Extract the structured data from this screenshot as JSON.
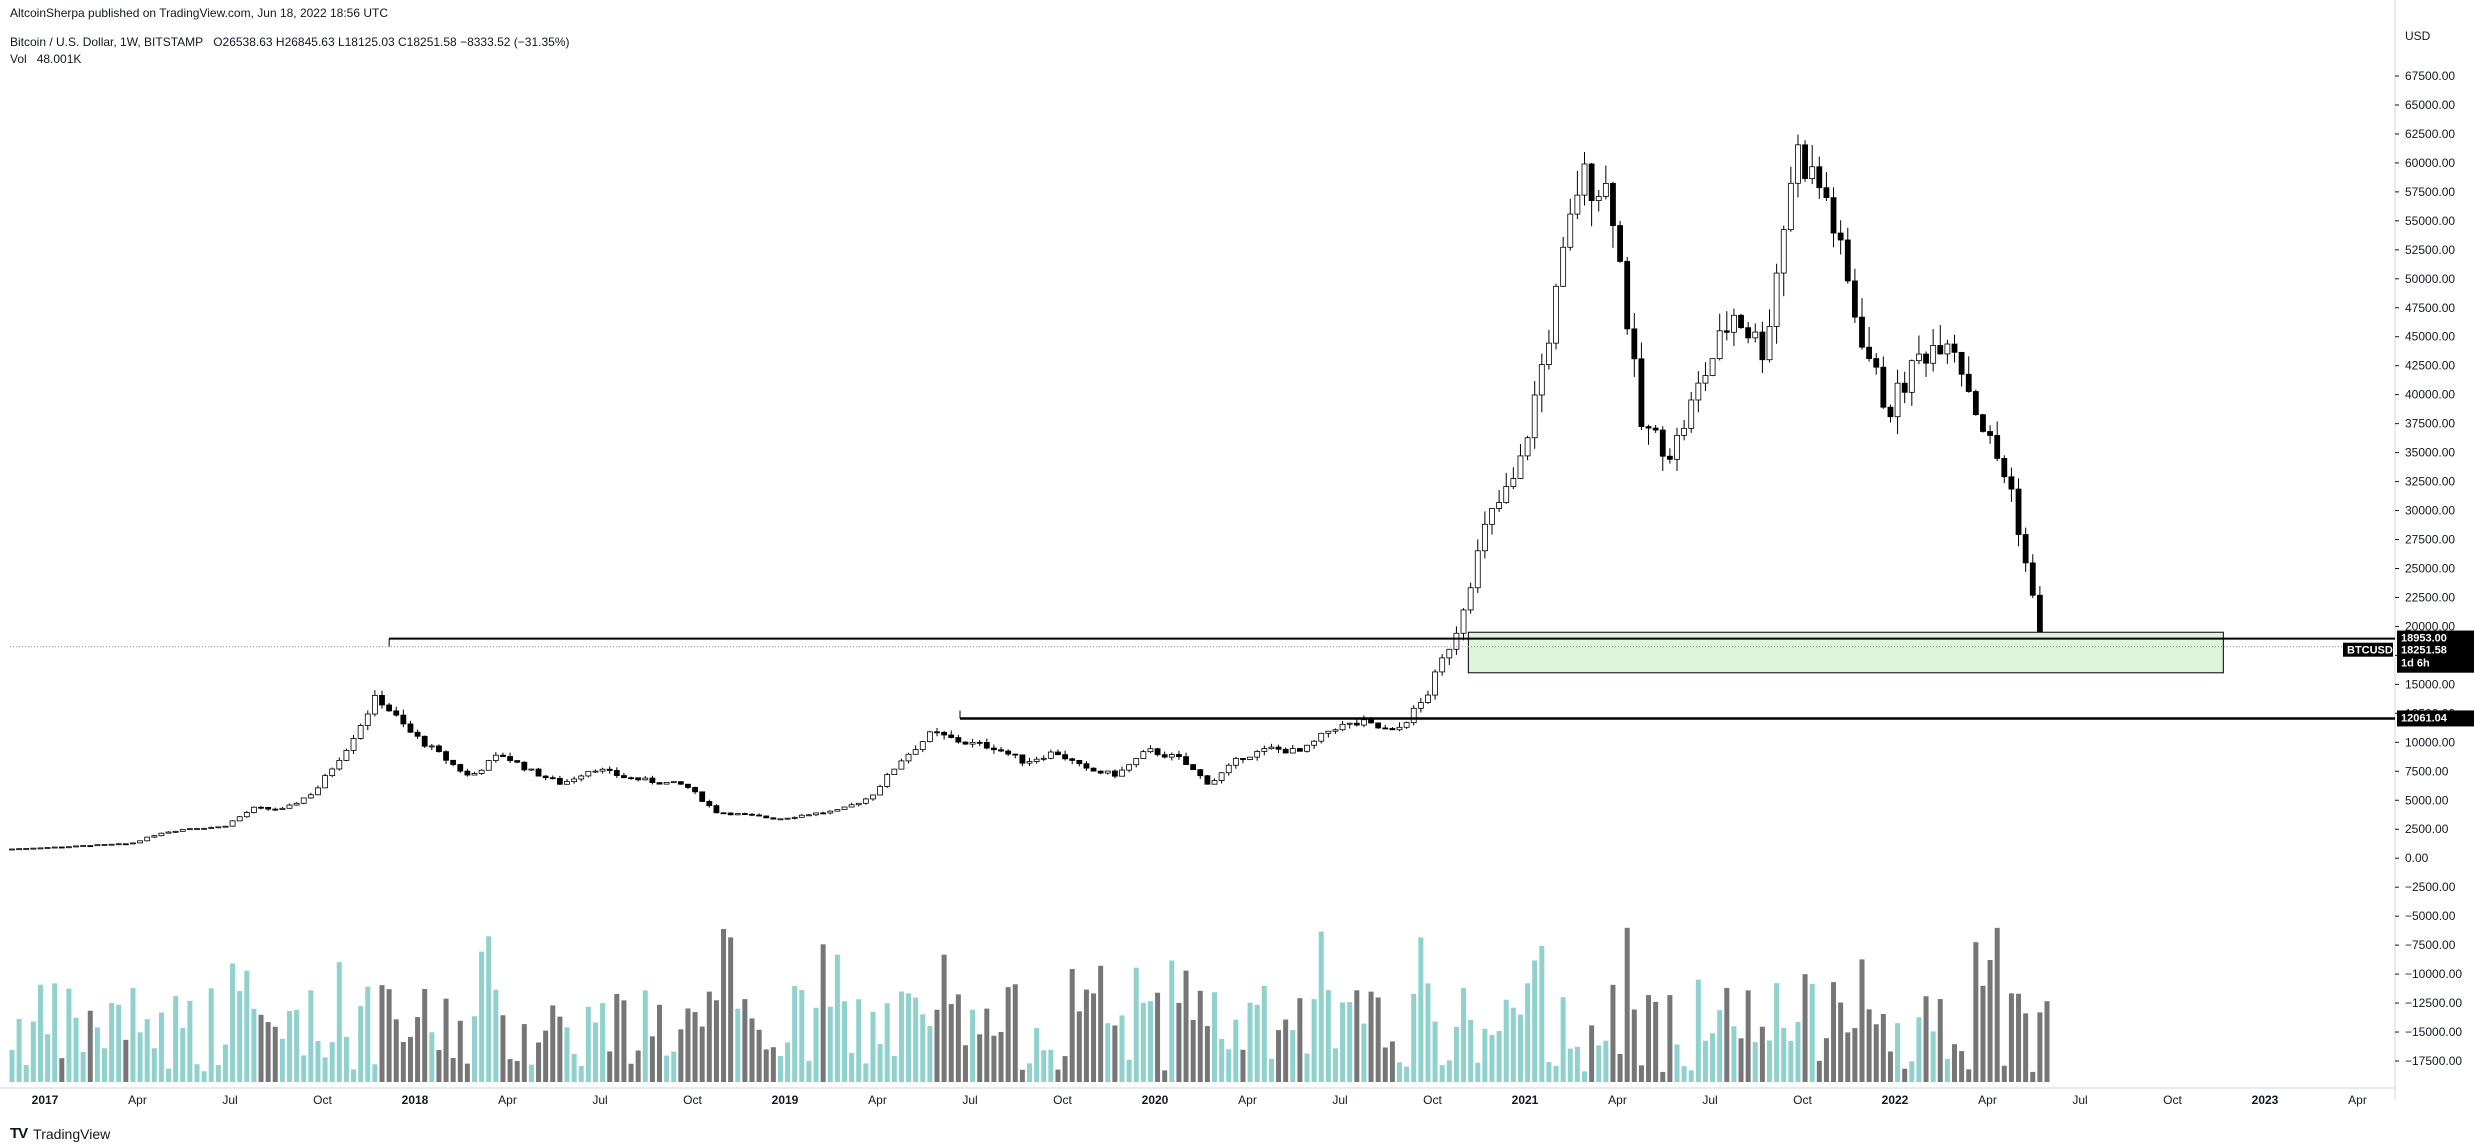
{
  "header": {
    "published": "AltcoinSherpa published on TradingView.com, Jun 18, 2022 18:56 UTC",
    "symbol_line": "Bitcoin / U.S. Dollar, 1W, BITSTAMP",
    "ohlc": "O26538.63  H26845.63  L18125.03  C18251.58  −8333.52 (−31.35%)",
    "vol_label": "Vol",
    "vol_value": "48.001K"
  },
  "footer": {
    "logo_text": "TV",
    "brand": "TradingView"
  },
  "currency_label": "USD",
  "price_tags": [
    {
      "label": "18953.00",
      "value": 18953
    },
    {
      "label": "BTCUSD",
      "value": 18251.58,
      "sub": "18251.58",
      "sub2": "1d 6h"
    },
    {
      "label": "12061.04",
      "value": 12061.04
    }
  ],
  "chart_data": {
    "type": "candlestick",
    "title": "Bitcoin / U.S. Dollar, 1W, BITSTAMP",
    "price_axis": {
      "min": -17500,
      "max": 67500,
      "step": 2500,
      "labels": [
        "67500.00",
        "65000.00",
        "62500.00",
        "60000.00",
        "57500.00",
        "55000.00",
        "52500.00",
        "50000.00",
        "47500.00",
        "45000.00",
        "42500.00",
        "40000.00",
        "37500.00",
        "35000.00",
        "32500.00",
        "30000.00",
        "27500.00",
        "25000.00",
        "22500.00",
        "20000.00",
        "17500.00",
        "15000.00",
        "12500.00",
        "10000.00",
        "7500.00",
        "5000.00",
        "2500.00",
        "0.00",
        "−2500.00",
        "−5000.00",
        "−7500.00",
        "−10000.00",
        "−12500.00",
        "−15000.00",
        "−17500.00"
      ]
    },
    "time_axis": {
      "labels": [
        "2017",
        "Apr",
        "Jul",
        "Oct",
        "2018",
        "Apr",
        "Jul",
        "Oct",
        "2019",
        "Apr",
        "Jul",
        "Oct",
        "2020",
        "Apr",
        "Jul",
        "Oct",
        "2021",
        "Apr",
        "Jul",
        "Oct",
        "2022",
        "Apr",
        "Jul",
        "Oct",
        "2023",
        "Apr"
      ],
      "bold": [
        "2017",
        "2018",
        "2019",
        "2020",
        "2021",
        "2022",
        "2023"
      ]
    },
    "series_prices": [
      [
        "2017-01",
        900
      ],
      [
        "2017-02",
        1000
      ],
      [
        "2017-03",
        1150
      ],
      [
        "2017-04",
        1250
      ],
      [
        "2017-05",
        2200
      ],
      [
        "2017-06",
        2600
      ],
      [
        "2017-07",
        2700
      ],
      [
        "2017-08",
        4300
      ],
      [
        "2017-09",
        4200
      ],
      [
        "2017-10",
        5800
      ],
      [
        "2017-11",
        9500
      ],
      [
        "2017-12",
        14000
      ],
      [
        "2018-01",
        11000
      ],
      [
        "2018-02",
        9000
      ],
      [
        "2018-03",
        7000
      ],
      [
        "2018-04",
        9000
      ],
      [
        "2018-05",
        7500
      ],
      [
        "2018-06",
        6400
      ],
      [
        "2018-07",
        7800
      ],
      [
        "2018-08",
        7000
      ],
      [
        "2018-09",
        6600
      ],
      [
        "2018-10",
        6300
      ],
      [
        "2018-11",
        4000
      ],
      [
        "2018-12",
        3700
      ],
      [
        "2019-01",
        3400
      ],
      [
        "2019-02",
        3800
      ],
      [
        "2019-03",
        4100
      ],
      [
        "2019-04",
        5300
      ],
      [
        "2019-05",
        8500
      ],
      [
        "2019-06",
        10800
      ],
      [
        "2019-07",
        10000
      ],
      [
        "2019-08",
        9600
      ],
      [
        "2019-09",
        8300
      ],
      [
        "2019-10",
        9200
      ],
      [
        "2019-11",
        7600
      ],
      [
        "2019-12",
        7200
      ],
      [
        "2020-01",
        9300
      ],
      [
        "2020-02",
        8600
      ],
      [
        "2020-03",
        6400
      ],
      [
        "2020-04",
        8700
      ],
      [
        "2020-05",
        9450
      ],
      [
        "2020-06",
        9150
      ],
      [
        "2020-07",
        11300
      ],
      [
        "2020-08",
        11650
      ],
      [
        "2020-09",
        10800
      ],
      [
        "2020-10",
        13800
      ],
      [
        "2020-11",
        19700
      ],
      [
        "2020-12",
        29000
      ],
      [
        "2021-01",
        33100
      ],
      [
        "2021-02",
        45200
      ],
      [
        "2021-03",
        58800
      ],
      [
        "2021-04",
        57700
      ],
      [
        "2021-05",
        37300
      ],
      [
        "2021-06",
        35000
      ],
      [
        "2021-07",
        41500
      ],
      [
        "2021-08",
        47100
      ],
      [
        "2021-09",
        43800
      ],
      [
        "2021-10",
        61300
      ],
      [
        "2021-11",
        57000
      ],
      [
        "2021-12",
        46300
      ],
      [
        "2022-01",
        38500
      ],
      [
        "2022-02",
        43200
      ],
      [
        "2022-03",
        45500
      ],
      [
        "2022-04",
        37700
      ],
      [
        "2022-05",
        31800
      ],
      [
        "2022-06",
        18251.58
      ]
    ],
    "annotations": {
      "support_line_1": 18953.0,
      "support_line_2": 12061.04,
      "zone_low": 16000,
      "zone_high": 19500,
      "last_close": 18251.58
    }
  },
  "colors": {
    "up_volume": "#8fd1cc",
    "down_volume": "#767676",
    "candle_up_fill": "#ffffff",
    "candle_down_fill": "#000000",
    "zone_fill": "#dcf5d9"
  }
}
